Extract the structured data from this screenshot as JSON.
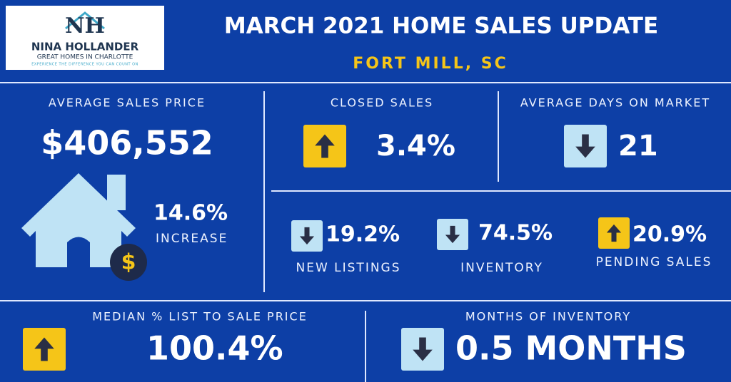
{
  "logo": {
    "initials": "NH",
    "name": "NINA HOLLANDER",
    "tagline": "GREAT HOMES IN CHARLOTTE",
    "motto": "EXPERIENCE THE DIFFERENCE YOU CAN COUNT ON"
  },
  "header": {
    "title": "MARCH 2021 HOME SALES UPDATE",
    "subtitle": "FORT MILL, SC"
  },
  "average_sales_price": {
    "label": "AVERAGE SALES PRICE",
    "value": "$406,552",
    "change": "14.6%",
    "change_note": "INCREASE"
  },
  "closed_sales": {
    "label": "CLOSED SALES",
    "value": "3.4%",
    "direction": "up"
  },
  "average_days_on_market": {
    "label": "AVERAGE DAYS ON MARKET",
    "value": "21",
    "direction": "down"
  },
  "new_listings": {
    "label": "NEW LISTINGS",
    "value": "19.2%",
    "direction": "down"
  },
  "inventory": {
    "label": "INVENTORY",
    "value": "74.5%",
    "direction": "down"
  },
  "pending_sales": {
    "label": "PENDING SALES",
    "value": "20.9%",
    "direction": "up"
  },
  "median_list_to_sale": {
    "label": "MEDIAN % LIST TO SALE PRICE",
    "value": "100.4%",
    "direction": "up"
  },
  "months_of_inventory": {
    "label": "MONTHS OF INVENTORY",
    "value": "0.5 MONTHS",
    "direction": "down"
  }
}
